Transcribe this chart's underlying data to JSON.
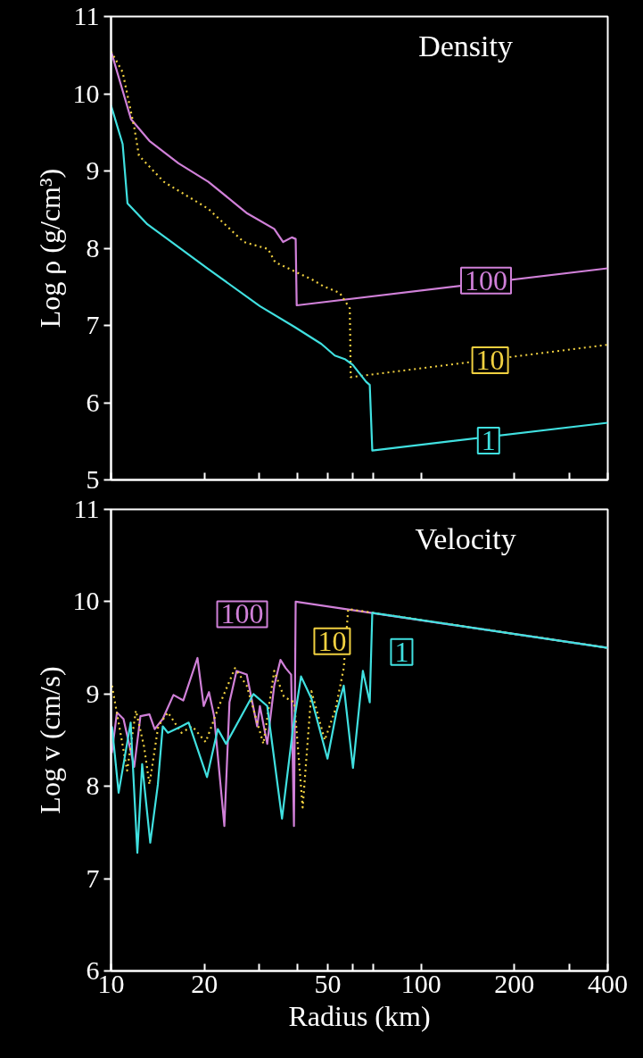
{
  "chart_data": [
    {
      "type": "line",
      "title": "Density",
      "ylabel": "Log ρ (g/cm³)",
      "log": "x",
      "grid": false,
      "tick_labels": "y",
      "xlim": [
        10,
        400
      ],
      "ylim": [
        5,
        11
      ],
      "xticks": [
        {
          "value": 10,
          "label": null
        },
        {
          "value": 20,
          "label": null
        },
        {
          "value": 30,
          "label": null
        },
        {
          "value": 40,
          "label": null
        },
        {
          "value": 50,
          "label": null
        },
        {
          "value": 60,
          "label": null
        },
        {
          "value": 70,
          "label": null
        },
        {
          "value": 100,
          "label": null
        },
        {
          "value": 200,
          "label": null
        },
        {
          "value": 300,
          "label": null
        },
        {
          "value": 400,
          "label": null
        }
      ],
      "yticks": [
        5,
        6,
        7,
        8,
        9,
        10,
        11
      ],
      "series": [
        {
          "color": "#d080d8",
          "line_style": "solid",
          "x": [
            10,
            11.6,
            13.3,
            16.5,
            20.6,
            25.1,
            27.5,
            33.6,
            35.9,
            38.3,
            39.4,
            39.7,
            400
          ],
          "values": [
            10.55,
            9.67,
            9.39,
            9.1,
            8.86,
            8.58,
            8.45,
            8.25,
            8.08,
            8.14,
            8.12,
            7.26,
            7.74
          ]
        },
        {
          "color": "#f0d040",
          "line_style": "dotted",
          "x": [
            10,
            10.9,
            11.9,
            12.3,
            14.8,
            20.6,
            26.8,
            32.1,
            33.8,
            44.7,
            48.3,
            54.7,
            58.9,
            59.3,
            400
          ],
          "values": [
            10.55,
            10.28,
            9.55,
            9.2,
            8.86,
            8.51,
            8.08,
            7.99,
            7.82,
            7.59,
            7.51,
            7.42,
            7.22,
            6.33,
            6.75
          ]
        },
        {
          "color": "#40e0e0",
          "line_style": "solid",
          "x": [
            10,
            10.9,
            11.3,
            13.1,
            15.2,
            20.6,
            30.2,
            39.1,
            47.7,
            52.7,
            57.0,
            60.2,
            66.5,
            68.3,
            69.6,
            400
          ],
          "values": [
            9.85,
            9.35,
            8.58,
            8.31,
            8.12,
            7.73,
            7.25,
            6.98,
            6.76,
            6.61,
            6.56,
            6.49,
            6.27,
            6.23,
            5.38,
            5.74
          ]
        }
      ],
      "annotations": [
        {
          "text": "100",
          "x": 162,
          "y": 7.58
        },
        {
          "text": "10",
          "x": 167,
          "y": 6.55
        },
        {
          "text": "1",
          "x": 165,
          "y": 5.51
        }
      ]
    },
    {
      "type": "line",
      "title": "Velocity",
      "xlabel": "Radius (km)",
      "ylabel": "Log v (cm/s)",
      "log": "x",
      "grid": false,
      "xlim": [
        10,
        400
      ],
      "ylim": [
        6,
        11
      ],
      "xticks": [
        10,
        20,
        {
          "value": 30,
          "label": null
        },
        {
          "value": 40,
          "label": null
        },
        50,
        {
          "value": 60,
          "label": null
        },
        {
          "value": 70,
          "label": null
        },
        100,
        200,
        {
          "value": 300,
          "label": null
        },
        400
      ],
      "yticks": [
        6,
        7,
        8,
        9,
        10,
        11
      ],
      "series": [
        {
          "color": "#d080d8",
          "line_style": "solid",
          "x": [
            10.06,
            10.45,
            10.97,
            11.88,
            12.44,
            13.3,
            13.83,
            14.68,
            15.9,
            17.1,
            19.0,
            19.9,
            20.7,
            21.5,
            23.2,
            24.1,
            25.4,
            27.4,
            29.6,
            30.2,
            31.9,
            33.6,
            35.2,
            36.6,
            38.1,
            38.9,
            39.4,
            400
          ],
          "values": [
            8.36,
            8.8,
            8.73,
            8.21,
            8.76,
            8.78,
            8.62,
            8.73,
            8.99,
            8.93,
            9.39,
            8.87,
            9.02,
            8.76,
            7.57,
            8.91,
            9.25,
            9.21,
            8.65,
            8.87,
            8.46,
            9.09,
            9.37,
            9.28,
            9.21,
            7.57,
            10.0,
            9.5
          ]
        },
        {
          "color": "#f0d040",
          "line_style": "dotted",
          "x": [
            10.07,
            10.58,
            11.27,
            12.03,
            12.78,
            13.3,
            14.2,
            15.26,
            16.87,
            18.27,
            20.2,
            22.3,
            25.1,
            27.4,
            31.0,
            33.6,
            36.1,
            39.0,
            41.5,
            44.3,
            48.9,
            53.0,
            56.3,
            58.2,
            400
          ],
          "values": [
            9.09,
            8.69,
            8.17,
            8.82,
            8.43,
            8.02,
            8.65,
            8.8,
            8.58,
            8.65,
            8.48,
            8.87,
            9.28,
            9.09,
            8.46,
            9.25,
            8.97,
            8.91,
            7.77,
            9.03,
            8.5,
            8.84,
            9.28,
            9.92,
            9.5
          ]
        },
        {
          "color": "#40e0e0",
          "line_style": "solid",
          "x": [
            10.07,
            10.58,
            11.57,
            12.16,
            12.6,
            13.38,
            14.16,
            14.68,
            15.26,
            16.87,
            17.8,
            20.4,
            22.1,
            23.5,
            28.8,
            31.9,
            35.6,
            38.6,
            41.0,
            44.3,
            49.9,
            53.3,
            56.3,
            60.3,
            64.9,
            68.3,
            69.6,
            400
          ],
          "values": [
            8.65,
            7.93,
            8.69,
            7.28,
            8.24,
            7.39,
            8.02,
            8.65,
            8.58,
            8.65,
            8.69,
            8.1,
            8.62,
            8.46,
            9.0,
            8.87,
            7.65,
            8.62,
            9.19,
            8.95,
            8.3,
            8.8,
            9.09,
            8.2,
            9.25,
            8.91,
            9.88,
            9.5
          ]
        }
      ],
      "annotations": [
        "100",
        "10",
        "1"
      ]
    }
  ]
}
